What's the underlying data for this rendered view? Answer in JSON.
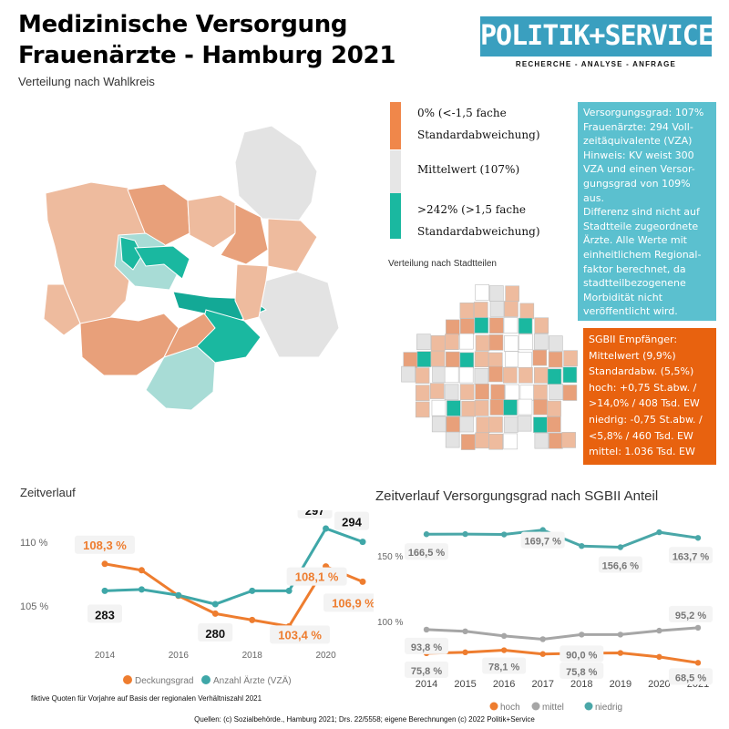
{
  "header": {
    "title_line1": "Medizinische Versorgung",
    "title_line2": "Frauenärzte - Hamburg 2021",
    "subtitle": "Verteilung nach Wahlkreis",
    "logo_text": "POLITIK+SERVICE",
    "logo_tagline": "RECHERCHE - ANALYSE - ANFRAGE"
  },
  "map_legend": [
    {
      "color": "#f0874a",
      "line1": "0% (<-1,5 fache",
      "line2": "Standardabweichung)"
    },
    {
      "color": "#e6e6e6",
      "line1": "Mittelwert (107%)",
      "line2": ""
    },
    {
      "color": "#1ab8a0",
      "line1": ">242% (>1,5 fache",
      "line2": "Standardabweichung)"
    }
  ],
  "stadtteile_title": "Verteilung nach Stadtteilen",
  "info_box_1": [
    "Versorgungsgrad: 107%",
    "Frauenärzte: 294 Voll-",
    "zeitäquivalente (VZA)",
    "Hinweis: KV weist 300",
    "VZA und einen Versor-",
    "gungsgrad von 109% aus.",
    "Differenz sind nicht auf",
    "Stadtteile zugeordnete",
    "Ärzte.  Alle Werte mit",
    "einheitlichem Regional-",
    "faktor berechnet, da",
    "stadtteilbezogenene",
    "Morbidität nicht",
    "veröffentlicht wird."
  ],
  "info_box_2": [
    "SGBII Empfänger:",
    "Mittelwert (9,9%)",
    "Standardabw. (5,5%)",
    "hoch: +0,75 St.abw. /",
    ">14,0% / 408 Tsd. EW",
    "niedrig: -0,75 St.abw. /",
    "<5,8% / 460 Tsd. EW",
    "mittel: 1.036 Tsd. EW"
  ],
  "colors": {
    "orange": "#ee7d2f",
    "teal": "#3fa7a8",
    "grey": "#a6a6a6",
    "teal_right": "#4aa7a8",
    "map_light_orange": "#eebb9e",
    "map_orange": "#e8a07a",
    "map_grey": "#e3e3e3",
    "map_teal": "#1ab8a0",
    "map_light_teal": "#a8dcd6",
    "map_dark_teal": "#13a996"
  },
  "chart_data": [
    {
      "type": "line",
      "title": "Zeitverlauf",
      "x": [
        2014,
        2015,
        2016,
        2017,
        2018,
        2019,
        2020,
        2021
      ],
      "x_tick_labels": [
        "2014",
        "2016",
        "2018",
        "2020"
      ],
      "y_tick_labels": [
        "110 %",
        "105 %"
      ],
      "series": [
        {
          "name": "Deckungsgrad",
          "axis": "left",
          "values": [
            108.3,
            107.8,
            105.8,
            104.4,
            103.9,
            103.4,
            108.1,
            106.9
          ]
        },
        {
          "name": "Anzahl Ärzte (VZÄ)",
          "axis": "right",
          "values": [
            283,
            283.3,
            282,
            280,
            283,
            283,
            297,
            294
          ]
        }
      ],
      "left_axis_range": [
        104,
        111
      ],
      "data_labels": {
        "Deckungsgrad": [
          {
            "x": 2014,
            "text": "108,3 %"
          },
          {
            "x": 2020,
            "text": "108,1 %"
          },
          {
            "x": 2021,
            "text": "106,9 %"
          },
          {
            "x": 2019,
            "text": "103,4 %"
          }
        ],
        "Anzahl Ärzte (VZÄ)": [
          {
            "x": 2014,
            "text": "283"
          },
          {
            "x": 2017,
            "text": "280"
          },
          {
            "x": 2020,
            "text": "297"
          },
          {
            "x": 2021,
            "text": "294"
          }
        ]
      },
      "legend_position": "bottom",
      "grid": false
    },
    {
      "type": "line",
      "title": "Zeitverlauf Versorgungsgrad nach SGBII Anteil",
      "x": [
        2014,
        2015,
        2016,
        2017,
        2018,
        2019,
        2020,
        2021
      ],
      "x_tick_labels": [
        "2014",
        "2015",
        "2016",
        "2017",
        "2018",
        "2019",
        "2020",
        "2021"
      ],
      "y_tick_labels": [
        "150 %",
        "100 %"
      ],
      "series": [
        {
          "name": "hoch",
          "values": [
            75.8,
            76.5,
            78.1,
            75.2,
            75.8,
            76.0,
            73.0,
            68.5
          ]
        },
        {
          "name": "mittel",
          "values": [
            93.8,
            92.5,
            89.0,
            86.5,
            90.0,
            90.0,
            93.0,
            95.2
          ]
        },
        {
          "name": "niedrig",
          "values": [
            166.5,
            166.6,
            166.3,
            169.7,
            157.5,
            156.6,
            168.0,
            163.7
          ]
        }
      ],
      "data_labels": {
        "hoch": [
          {
            "x": 2014,
            "text": "75,8 %"
          },
          {
            "x": 2016,
            "text": "78,1 %"
          },
          {
            "x": 2018,
            "text": "75,8 %"
          },
          {
            "x": 2021,
            "text": "68,5 %"
          }
        ],
        "mittel": [
          {
            "x": 2014,
            "text": "93,8 %"
          },
          {
            "x": 2018,
            "text": "90,0 %"
          },
          {
            "x": 2021,
            "text": "95,2 %"
          }
        ],
        "niedrig": [
          {
            "x": 2014,
            "text": "166,5 %"
          },
          {
            "x": 2017,
            "text": "169,7 %"
          },
          {
            "x": 2019,
            "text": "156,6 %"
          },
          {
            "x": 2021,
            "text": "163,7 %"
          }
        ]
      },
      "legend_position": "bottom",
      "grid": false
    }
  ],
  "footnote": "fiktive Quoten für Vorjahre auf Basis der regionalen Verhältniszahl 2021",
  "sources": "Quellen:  (c) Sozialbehörde., Hamburg 2021; Drs. 22/5558; eigene Berechnungen (c) 2022 Politik+Service"
}
